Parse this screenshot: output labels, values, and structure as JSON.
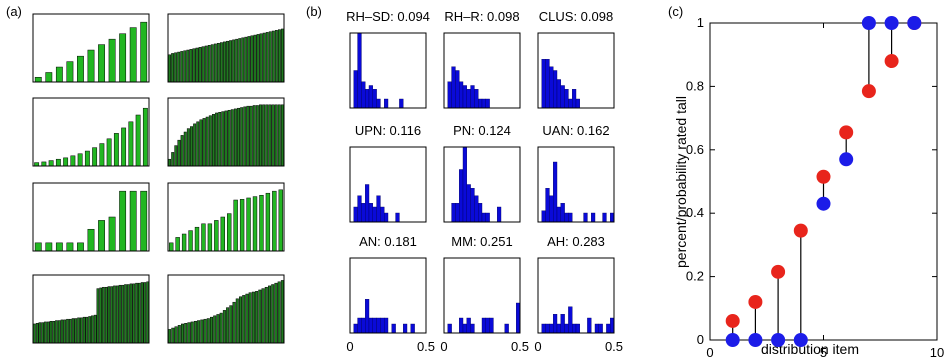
{
  "chart_data": [
    {
      "panel_label": "(a)",
      "type": "bar",
      "grid": false,
      "charts": [
        {
          "values": [
            0.07,
            0.14,
            0.22,
            0.3,
            0.38,
            0.47,
            0.55,
            0.63,
            0.71,
            0.8,
            0.88
          ]
        },
        {
          "values": [
            0.4,
            0.42,
            0.43,
            0.44,
            0.45,
            0.46,
            0.47,
            0.48,
            0.49,
            0.5,
            0.51,
            0.52,
            0.53,
            0.54,
            0.55,
            0.56,
            0.57,
            0.58,
            0.59,
            0.6,
            0.61,
            0.62,
            0.63,
            0.64,
            0.65,
            0.66,
            0.67,
            0.68,
            0.69,
            0.7,
            0.71,
            0.72,
            0.73,
            0.74,
            0.75,
            0.76,
            0.77,
            0.78
          ]
        },
        {
          "values": [
            0.05,
            0.06,
            0.08,
            0.1,
            0.12,
            0.15,
            0.18,
            0.22,
            0.27,
            0.33,
            0.4,
            0.48,
            0.56,
            0.65,
            0.75,
            0.85
          ]
        },
        {
          "values": [
            0.1,
            0.2,
            0.3,
            0.38,
            0.45,
            0.5,
            0.55,
            0.58,
            0.62,
            0.65,
            0.68,
            0.7,
            0.72,
            0.74,
            0.76,
            0.78,
            0.79,
            0.8,
            0.81,
            0.82,
            0.83,
            0.84,
            0.85,
            0.86,
            0.87,
            0.88,
            0.88,
            0.89,
            0.89,
            0.9,
            0.9,
            0.9,
            0.9,
            0.9,
            0.9,
            0.9,
            0.9
          ]
        },
        {
          "values": [
            0.12,
            0.12,
            0.12,
            0.12,
            0.12,
            0.32,
            0.45,
            0.5,
            0.88,
            0.88,
            0.88
          ]
        },
        {
          "values": [
            0.12,
            0.2,
            0.25,
            0.3,
            0.35,
            0.4,
            0.4,
            0.45,
            0.5,
            0.55,
            0.75,
            0.76,
            0.78,
            0.8,
            0.82,
            0.85,
            0.88,
            0.9
          ]
        },
        {
          "values": [
            0.28,
            0.29,
            0.3,
            0.3,
            0.31,
            0.31,
            0.32,
            0.32,
            0.33,
            0.33,
            0.34,
            0.34,
            0.35,
            0.35,
            0.36,
            0.36,
            0.37,
            0.37,
            0.38,
            0.38,
            0.39,
            0.4,
            0.41,
            0.8,
            0.81,
            0.82,
            0.82,
            0.83,
            0.83,
            0.84,
            0.84,
            0.85,
            0.85,
            0.86,
            0.86,
            0.87,
            0.87,
            0.88,
            0.88,
            0.89,
            0.89,
            0.9
          ]
        },
        {
          "values": [
            0.2,
            0.22,
            0.24,
            0.26,
            0.28,
            0.29,
            0.3,
            0.31,
            0.32,
            0.33,
            0.34,
            0.35,
            0.36,
            0.38,
            0.4,
            0.42,
            0.44,
            0.48,
            0.52,
            0.55,
            0.6,
            0.65,
            0.68,
            0.7,
            0.72,
            0.74,
            0.75,
            0.76,
            0.78,
            0.8,
            0.82,
            0.84,
            0.86,
            0.88,
            0.9,
            0.92
          ]
        }
      ]
    },
    {
      "panel_label": "(b)",
      "type": "bar",
      "xlim": [
        0,
        0.5
      ],
      "xticks": [
        "0",
        "0.5"
      ],
      "grid": false,
      "charts": [
        {
          "title": "RH–SD: 0.094",
          "values": [
            0,
            0.5,
            1,
            0.35,
            0.25,
            0.3,
            0.25,
            0.12,
            0,
            0.12,
            0,
            0,
            0,
            0.12,
            0,
            0,
            0,
            0,
            0,
            0
          ]
        },
        {
          "title": "RH–R: 0.098",
          "values": [
            0,
            0.35,
            0.55,
            0.5,
            0.35,
            0.3,
            0.25,
            0.3,
            0.25,
            0.12,
            0.12,
            0.12,
            0,
            0,
            0,
            0,
            0,
            0,
            0,
            0
          ]
        },
        {
          "title": "CLUS: 0.098",
          "values": [
            0,
            0.65,
            0.65,
            0.55,
            0.5,
            0.38,
            0.3,
            0.25,
            0.12,
            0.25,
            0.12,
            0,
            0,
            0,
            0,
            0,
            0,
            0,
            0,
            0
          ]
        },
        {
          "title": "UPN: 0.116",
          "values": [
            0,
            0.2,
            0.35,
            0.25,
            0.5,
            0.25,
            0.2,
            0.35,
            0.2,
            0.12,
            0,
            0,
            0.12,
            0,
            0,
            0,
            0,
            0,
            0,
            0
          ]
        },
        {
          "title": "PN: 0.124",
          "values": [
            0,
            0,
            0.25,
            0.25,
            0.7,
            1,
            0.5,
            0.45,
            0.35,
            0.25,
            0.12,
            0.12,
            0,
            0,
            0.2,
            0,
            0,
            0,
            0,
            0
          ]
        },
        {
          "title": "UAN: 0.162",
          "values": [
            0,
            0.15,
            0.45,
            0.35,
            0.8,
            0.2,
            0.25,
            0.12,
            0.12,
            0,
            0,
            0,
            0.12,
            0,
            0.12,
            0,
            0,
            0.12,
            0,
            0.12
          ]
        },
        {
          "title": "AN: 0.181",
          "values": [
            0,
            0.12,
            0.2,
            0.2,
            0.45,
            0.2,
            0.2,
            0.2,
            0.2,
            0.2,
            0,
            0.12,
            0,
            0,
            0.12,
            0,
            0.12,
            0,
            0,
            0
          ]
        },
        {
          "title": "MM: 0.251",
          "values": [
            0,
            0.12,
            0,
            0,
            0.2,
            0.12,
            0.2,
            0.12,
            0,
            0,
            0.2,
            0.2,
            0.2,
            0,
            0,
            0,
            0.12,
            0,
            0,
            0.4
          ]
        },
        {
          "title": "AH: 0.283",
          "values": [
            0,
            0.12,
            0.12,
            0.12,
            0.25,
            0.12,
            0.25,
            0.12,
            0.35,
            0.12,
            0.12,
            0,
            0,
            0.2,
            0,
            0.12,
            0.12,
            0,
            0.12,
            0.2
          ]
        }
      ]
    },
    {
      "panel_label": "(c)",
      "type": "scatter",
      "xlabel": "distribution item",
      "ylabel": "percent/probability rated tall",
      "xlim": [
        0,
        10
      ],
      "ylim": [
        0,
        1
      ],
      "xticks": [
        0,
        5,
        10
      ],
      "yticks": [
        0,
        0.2,
        0.4,
        0.6,
        0.8,
        1
      ],
      "grid": false,
      "series": [
        {
          "color": "#e8251c",
          "x": [
            1,
            2,
            3,
            4,
            5,
            6,
            7,
            8,
            9
          ],
          "values": [
            0.06,
            0.12,
            0.215,
            0.345,
            0.515,
            0.655,
            0.785,
            0.88,
            1.0
          ]
        },
        {
          "color": "#1c1ce8",
          "x": [
            1,
            2,
            3,
            4,
            5,
            6,
            7,
            8,
            9
          ],
          "values": [
            0,
            0,
            0,
            0,
            0.43,
            0.57,
            1.0,
            1.0,
            1.0
          ]
        }
      ]
    }
  ]
}
